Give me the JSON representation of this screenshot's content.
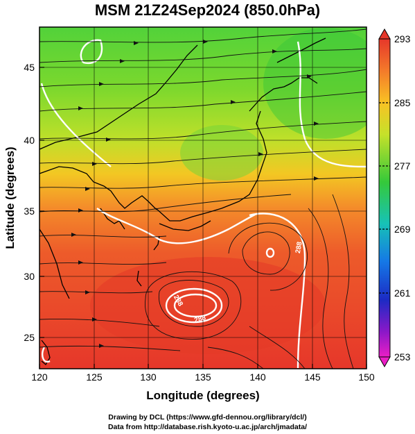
{
  "title": "MSM 21Z24Sep2024 (850.0hPa)",
  "xlabel": "Longitude (degrees)",
  "ylabel": "Latitude  (degrees)",
  "x_ticks": [
    "120",
    "125",
    "130",
    "135",
    "140",
    "145",
    "150"
  ],
  "y_ticks": [
    "25",
    "30",
    "35",
    "40",
    "45"
  ],
  "colorbar_ticks": [
    "293",
    "285",
    "277",
    "269",
    "261",
    "253"
  ],
  "credit_line1": "Drawing by DCL (https://www.gfd-dennou.org/library/dcl/)",
  "credit_line2": "Data from http://database.rish.kyoto-u.ac.jp/arch/jmadata/",
  "chart_data": {
    "type": "heatmap",
    "variable": "temperature with streamlines",
    "xlim": [
      120,
      150
    ],
    "ylim": [
      22.5,
      47.5
    ],
    "colorbar_range": [
      253,
      293
    ],
    "contour_labels": [
      "288",
      "288",
      "288"
    ],
    "colors": {
      "warm": "#e8442a",
      "mid": "#f5c020",
      "cool": "#2fbf3a"
    }
  }
}
